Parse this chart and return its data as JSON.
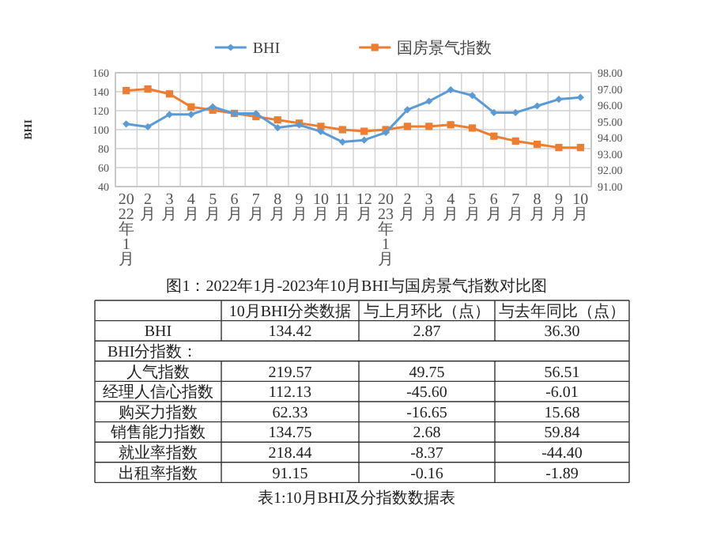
{
  "chart_data": [
    {
      "type": "line",
      "categories": [
        "2022年1月",
        "2月",
        "3月",
        "4月",
        "5月",
        "6月",
        "7月",
        "8月",
        "9月",
        "10月",
        "11月",
        "12月",
        "2023年1月",
        "2月",
        "3月",
        "4月",
        "5月",
        "6月",
        "7月",
        "8月",
        "9月",
        "10月"
      ],
      "ylabel": "BHI",
      "ylim": [
        40,
        160
      ],
      "yticks": [
        40,
        60,
        80,
        100,
        120,
        140,
        160
      ],
      "y2lim": [
        91,
        98
      ],
      "y2ticks": [
        {
          "value": 91,
          "label": "91.00"
        },
        {
          "value": 92,
          "label": "92.00"
        },
        {
          "value": 93,
          "label": "93.00"
        },
        {
          "value": 94,
          "label": "94.00"
        },
        {
          "value": 95,
          "label": "95.00"
        },
        {
          "value": 96,
          "label": "96.00"
        },
        {
          "value": 97,
          "label": "97.00"
        },
        {
          "value": 98,
          "label": "98.00"
        }
      ],
      "grid": true,
      "legend": "top",
      "series": [
        {
          "name": "BHI",
          "color": "#5b9bd5",
          "marker": "diamond",
          "values": [
            106,
            103,
            116,
            116,
            124,
            117,
            117,
            102,
            105,
            98,
            87,
            89,
            97,
            121,
            130,
            142,
            136,
            118,
            118,
            125,
            132,
            134
          ]
        },
        {
          "name": "国房景气指数",
          "color": "#ed7d31",
          "marker": "square",
          "axis": "y2",
          "values": [
            96.9,
            97.0,
            96.7,
            95.9,
            95.7,
            95.5,
            95.3,
            95.1,
            94.9,
            94.7,
            94.5,
            94.4,
            94.5,
            94.7,
            94.7,
            94.8,
            94.6,
            94.1,
            93.8,
            93.6,
            93.4,
            93.4
          ]
        }
      ],
      "annotations": [
        "图1：2022年1月-2023年10月BHI与国房景气指数对比图"
      ]
    },
    {
      "type": "other",
      "categories": [
        "10月BHI分类数据",
        "与上月环比（点）",
        "与去年同比（点）"
      ],
      "y_categories": [
        "BHI",
        "BHI分指数：",
        "人气指数",
        "经理人信心指数",
        "购买力指数",
        "销售能力指数",
        "就业率指数",
        "出租率指数"
      ],
      "cell_labels": [
        [
          "134.42",
          "2.87",
          "36.30"
        ],
        [
          null,
          null,
          null
        ],
        [
          "219.57",
          "49.75",
          "56.51"
        ],
        [
          "112.13",
          "-45.60",
          "-6.01"
        ],
        [
          "62.33",
          "-16.65",
          "15.68"
        ],
        [
          "134.75",
          "2.68",
          "59.84"
        ],
        [
          "218.44",
          "-8.37",
          "-44.40"
        ],
        [
          "91.15",
          "-0.16",
          "-1.89"
        ]
      ],
      "annotations": [
        "表1:10月BHI及分指数数据表"
      ]
    }
  ]
}
